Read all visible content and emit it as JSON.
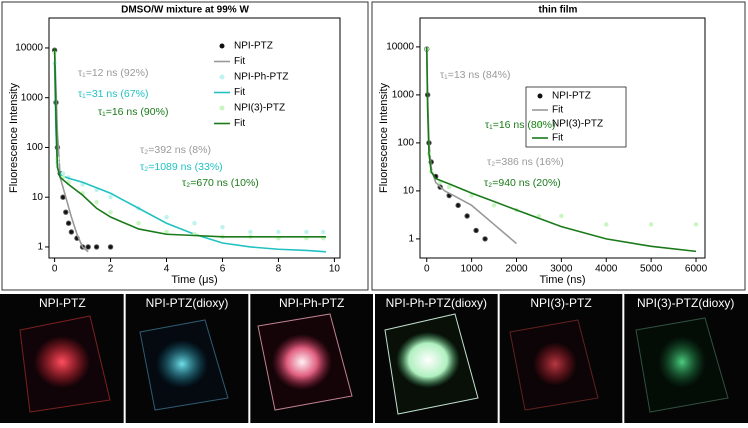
{
  "chart_data": [
    {
      "type": "scatter",
      "title": "DMSO/W mixture at 99% W",
      "x_label": "Time (μs)",
      "y_label": "Fluorescence Intensity",
      "log_y": true,
      "xlim": [
        -0.2,
        10.2
      ],
      "ylim": [
        0.6,
        40000
      ],
      "xticks": [
        0,
        2,
        4,
        6,
        8,
        10
      ],
      "yticks": [
        1,
        10,
        100,
        1000,
        10000
      ],
      "series": [
        {
          "name": "NPI-PTZ",
          "mode": "markers",
          "color": "#111111",
          "x": [
            0,
            0.05,
            0.1,
            0.2,
            0.3,
            0.4,
            0.5,
            0.6,
            0.8,
            1.0,
            1.2,
            1.5,
            2.0
          ],
          "values": [
            9000,
            800,
            100,
            30,
            10,
            5,
            3,
            2,
            1.5,
            1,
            1,
            1,
            1
          ]
        },
        {
          "name": "Fit",
          "mode": "line",
          "color": "#999999",
          "x": [
            0,
            0.05,
            0.1,
            0.2,
            0.4,
            0.6,
            0.8,
            1.0,
            1.2
          ],
          "values": [
            10000,
            1500,
            200,
            25,
            10,
            4,
            1.8,
            1,
            0.8
          ]
        },
        {
          "name": "NPI-Ph-PTZ",
          "mode": "markers",
          "color": "#bff3ee",
          "x": [
            0,
            0.1,
            0.3,
            0.5,
            1,
            1.5,
            2,
            3,
            4,
            5,
            6,
            7,
            8,
            9,
            9.6
          ],
          "values": [
            5000,
            50,
            30,
            25,
            18,
            14,
            10,
            6,
            4,
            3,
            2.5,
            2,
            2,
            2,
            2
          ]
        },
        {
          "name": "Fit",
          "mode": "line",
          "color": "#22c1c3",
          "x": [
            0,
            0.05,
            0.1,
            0.2,
            0.5,
            1,
            2,
            3,
            4,
            5,
            6,
            7,
            8,
            9,
            9.7
          ],
          "values": [
            5000,
            200,
            40,
            28,
            24,
            20,
            12,
            6,
            3,
            1.8,
            1.2,
            1,
            0.9,
            0.85,
            0.8
          ]
        },
        {
          "name": "NPI(3)-PTZ",
          "mode": "markers",
          "color": "#c8f5c0",
          "x": [
            0,
            0.1,
            0.3,
            0.5,
            1,
            1.5,
            2,
            3,
            4,
            5,
            6,
            7,
            8,
            9,
            9.6
          ],
          "values": [
            8000,
            60,
            25,
            20,
            12,
            8,
            5,
            3,
            2,
            1.8,
            1.6,
            1.6,
            1.5,
            1.5,
            1.5
          ]
        },
        {
          "name": "Fit",
          "mode": "line",
          "color": "#1a7a1a",
          "x": [
            0,
            0.05,
            0.1,
            0.2,
            0.5,
            1,
            1.5,
            2,
            3,
            4,
            5,
            6,
            8,
            9.7
          ],
          "values": [
            10000,
            400,
            40,
            25,
            18,
            11,
            6,
            4,
            2.3,
            1.8,
            1.7,
            1.6,
            1.6,
            1.6
          ]
        }
      ],
      "annotations": [
        {
          "text": "τ₁=12 ns (92%)",
          "color": "#999999"
        },
        {
          "text": "τ₁=31 ns (67%)",
          "color": "#22c1c3"
        },
        {
          "text": "τ₁=16 ns (90%)",
          "color": "#1a7a1a"
        },
        {
          "text": "τ₂=392 ns (8%)",
          "color": "#999999"
        },
        {
          "text": "τ₂=1089 ns (33%)",
          "color": "#22c1c3"
        },
        {
          "text": "τ₂=670 ns (10%)",
          "color": "#1a7a1a"
        }
      ]
    },
    {
      "type": "scatter",
      "title": "thin film",
      "x_label": "Time (ns)",
      "y_label": "Fluorescence Intensity",
      "log_y": true,
      "xlim": [
        -150,
        6200
      ],
      "ylim": [
        0.4,
        40000
      ],
      "xticks": [
        0,
        1000,
        2000,
        3000,
        4000,
        5000,
        6000
      ],
      "yticks": [
        1,
        10,
        100,
        1000,
        10000
      ],
      "legend_box": true,
      "series": [
        {
          "name": "NPI-PTZ",
          "mode": "markers",
          "color": "#111111",
          "x": [
            0,
            20,
            50,
            100,
            200,
            300,
            500,
            700,
            900,
            1100,
            1300
          ],
          "values": [
            9000,
            1000,
            100,
            40,
            20,
            12,
            8,
            5,
            3,
            1.5,
            1
          ]
        },
        {
          "name": "Fit",
          "mode": "line",
          "color": "#999999",
          "x": [
            0,
            20,
            50,
            100,
            200,
            400,
            600,
            1000,
            1500,
            2000
          ],
          "values": [
            10000,
            1000,
            100,
            30,
            15,
            10,
            8,
            5,
            2,
            0.8
          ]
        },
        {
          "name": "NPI(3)-PTZ",
          "mode": "markers",
          "color": "#c8f5c0",
          "x": [
            0,
            50,
            100,
            300,
            500,
            1000,
            1500,
            2000,
            2500,
            3000,
            4000,
            5000,
            6000
          ],
          "values": [
            9000,
            60,
            25,
            15,
            12,
            8,
            5,
            4,
            3,
            3,
            2,
            2,
            2
          ]
        },
        {
          "name": "Fit",
          "mode": "line",
          "color": "#1a7a1a",
          "x": [
            0,
            20,
            50,
            100,
            200,
            500,
            1000,
            1500,
            2000,
            3000,
            4000,
            5000,
            6000
          ],
          "values": [
            10000,
            500,
            60,
            25,
            18,
            14,
            9,
            6,
            4,
            1.8,
            1,
            0.7,
            0.55
          ]
        }
      ],
      "annotations": [
        {
          "text": "τ₁=13 ns (84%)",
          "color": "#999999"
        },
        {
          "text": "τ₁=16 ns (80%)",
          "color": "#1a7a1a"
        },
        {
          "text": "τ₂=386 ns (16%)",
          "color": "#999999"
        },
        {
          "text": "τ₂=940 ns (20%)",
          "color": "#1a7a1a"
        }
      ]
    }
  ],
  "photos": [
    "NPI-PTZ",
    "NPI-PTZ(dioxy)",
    "NPI-Ph-PTZ",
    "NPI-Ph-PTZ(dioxy)",
    "NPI(3)-PTZ",
    "NPI(3)-PTZ(dioxy)"
  ]
}
